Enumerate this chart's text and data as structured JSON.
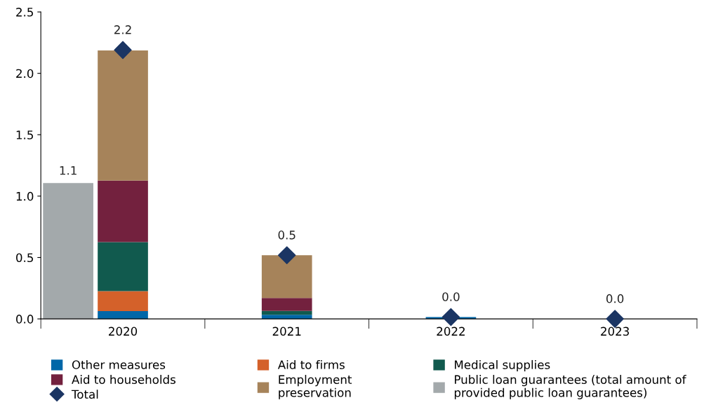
{
  "chart_data": {
    "type": "bar",
    "stacked": true,
    "categories": [
      null,
      "2020",
      null,
      null,
      "2021",
      null,
      null,
      "2022",
      null,
      null,
      "2023",
      null
    ],
    "series": [
      {
        "name": "Other measures",
        "color": "#0067a8",
        "values": [
          null,
          0.063,
          null,
          null,
          0.034,
          null,
          null,
          0.015,
          null,
          null,
          0,
          null
        ]
      },
      {
        "name": "Aid to firms",
        "color": "#d4612a",
        "values": [
          null,
          0.163,
          null,
          null,
          0,
          null,
          null,
          0,
          null,
          null,
          0,
          null
        ]
      },
      {
        "name": "Medical supplies",
        "color": "#115a4e",
        "values": [
          null,
          0.4,
          null,
          null,
          0.031,
          null,
          null,
          0,
          null,
          null,
          0,
          null
        ]
      },
      {
        "name": "Aid to households",
        "color": "#73213e",
        "values": [
          null,
          0.5,
          null,
          null,
          0.106,
          null,
          null,
          0,
          null,
          null,
          0,
          null
        ]
      },
      {
        "name": "Employment\npreservation",
        "color": "#a6835a",
        "values": [
          null,
          1.06,
          null,
          null,
          0.347,
          null,
          null,
          0,
          null,
          null,
          0,
          null
        ]
      },
      {
        "name": "Public loan guarantees (total amount of\nprovided public loan guarantees)",
        "color": "#a3a9ab",
        "values": [
          1.107,
          null,
          null,
          null,
          null,
          null,
          null,
          null,
          null,
          null,
          null,
          null
        ],
        "value_labels": [
          "1.1",
          null,
          null,
          null,
          null,
          null,
          null,
          null,
          null,
          null,
          null,
          null
        ]
      },
      {
        "name": "Total",
        "type": "scatter",
        "color": "#1b3563",
        "marker": "diamond",
        "values": [
          null,
          2.19,
          null,
          null,
          0.518,
          null,
          null,
          0.015,
          null,
          null,
          0,
          null
        ],
        "value_labels": [
          null,
          "2.2",
          null,
          null,
          "0.5",
          null,
          null,
          "0.0",
          null,
          null,
          "0.0",
          null
        ]
      }
    ],
    "ylim": [
      0,
      2.5
    ],
    "yticks": [
      {
        "value": 0,
        "label": "0.0"
      },
      {
        "value": 0.5,
        "label": "0.5"
      },
      {
        "value": 1,
        "label": "1.0"
      },
      {
        "value": 1.5,
        "label": "1.5"
      },
      {
        "value": 2,
        "label": "2.0"
      },
      {
        "value": 2.5,
        "label": "2.5"
      }
    ],
    "grid": false,
    "legend": "bottom"
  }
}
